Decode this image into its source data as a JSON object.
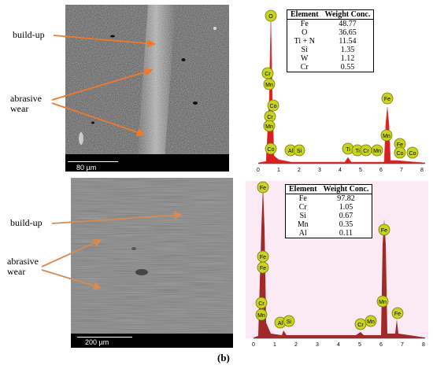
{
  "panel_top": {
    "labels": {
      "buildup": "build-up",
      "abrasive": "abrasive\nwear"
    },
    "scale": "80 µm",
    "table": {
      "headers": [
        "Element",
        "Weight Conc."
      ],
      "rows": [
        [
          "Fe",
          "48.77"
        ],
        [
          "O",
          "36.65"
        ],
        [
          "Ti + N",
          "11.54"
        ],
        [
          "Si",
          "1.35"
        ],
        [
          "W",
          "1.12"
        ],
        [
          "Cr",
          "0.55"
        ]
      ]
    },
    "peaks": [
      "O",
      "Cr",
      "Mn",
      "Co",
      "Cr",
      "Mn",
      "Co",
      "Al",
      "Si",
      "Ti",
      "Ti",
      "Cr",
      "Mn",
      "Fe",
      "Mn",
      "Fe",
      "Co",
      "Co"
    ],
    "ticks": [
      "0",
      "1",
      "2",
      "3",
      "4",
      "5",
      "6",
      "7",
      "8"
    ]
  },
  "panel_bottom": {
    "labels": {
      "buildup": "build-up",
      "abrasive": "abrasive\nwear"
    },
    "scale": "200 µm",
    "table": {
      "headers": [
        "Element",
        "Weight Conc."
      ],
      "rows": [
        [
          "Fe",
          "97.82"
        ],
        [
          "Cr",
          "1.05"
        ],
        [
          "Si",
          "0.67"
        ],
        [
          "Mn",
          "0.35"
        ],
        [
          "Al",
          "0.11"
        ]
      ]
    },
    "peaks": [
      "Fe",
      "Fe",
      "Cr",
      "Mn",
      "Al",
      "Si",
      "Cr",
      "Mn",
      "Fe",
      "Mn",
      "Fe"
    ],
    "ticks": [
      "0",
      "1",
      "2",
      "3",
      "4",
      "5",
      "6",
      "7",
      "8"
    ]
  },
  "caption": "(b)"
}
